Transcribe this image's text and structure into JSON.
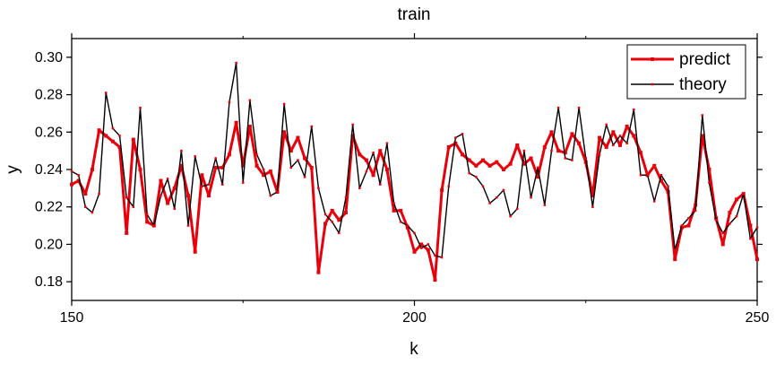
{
  "chart_data": {
    "type": "line",
    "title": "train",
    "xlabel": "k",
    "ylabel": "y",
    "xlim": [
      150,
      250
    ],
    "ylim": [
      0.17,
      0.31
    ],
    "xticks": [
      150,
      200,
      250
    ],
    "yticks": [
      0.18,
      0.2,
      0.22,
      0.24,
      0.26,
      0.28,
      0.3
    ],
    "ytick_labels": [
      "0.18",
      "0.20",
      "0.22",
      "0.24",
      "0.26",
      "0.28",
      "0.30"
    ],
    "grid": false,
    "legend_position": "top-right",
    "x": [
      150,
      151,
      152,
      153,
      154,
      155,
      156,
      157,
      158,
      159,
      160,
      161,
      162,
      163,
      164,
      165,
      166,
      167,
      168,
      169,
      170,
      171,
      172,
      173,
      174,
      175,
      176,
      177,
      178,
      179,
      180,
      181,
      182,
      183,
      184,
      185,
      186,
      187,
      188,
      189,
      190,
      191,
      192,
      193,
      194,
      195,
      196,
      197,
      198,
      199,
      200,
      201,
      202,
      203,
      204,
      205,
      206,
      207,
      208,
      209,
      210,
      211,
      212,
      213,
      214,
      215,
      216,
      217,
      218,
      219,
      220,
      221,
      222,
      223,
      224,
      225,
      226,
      227,
      228,
      229,
      230,
      231,
      232,
      233,
      234,
      235,
      236,
      237,
      238,
      239,
      240,
      241,
      242,
      243,
      244,
      245,
      246,
      247,
      248,
      249,
      250
    ],
    "series": [
      {
        "name": "predict",
        "color": "#e8000b",
        "values": [
          0.232,
          0.234,
          0.227,
          0.24,
          0.261,
          0.258,
          0.255,
          0.252,
          0.206,
          0.256,
          0.24,
          0.212,
          0.21,
          0.234,
          0.222,
          0.23,
          0.242,
          0.226,
          0.196,
          0.237,
          0.226,
          0.241,
          0.241,
          0.248,
          0.265,
          0.242,
          0.263,
          0.242,
          0.237,
          0.239,
          0.228,
          0.26,
          0.25,
          0.257,
          0.246,
          0.241,
          0.185,
          0.211,
          0.218,
          0.213,
          0.217,
          0.258,
          0.248,
          0.245,
          0.237,
          0.25,
          0.24,
          0.218,
          0.218,
          0.209,
          0.196,
          0.2,
          0.197,
          0.181,
          0.229,
          0.252,
          0.254,
          0.248,
          0.245,
          0.242,
          0.245,
          0.242,
          0.244,
          0.24,
          0.243,
          0.253,
          0.243,
          0.246,
          0.236,
          0.252,
          0.26,
          0.25,
          0.249,
          0.259,
          0.254,
          0.244,
          0.226,
          0.257,
          0.252,
          0.26,
          0.253,
          0.263,
          0.258,
          0.249,
          0.237,
          0.242,
          0.234,
          0.228,
          0.192,
          0.209,
          0.21,
          0.221,
          0.258,
          0.24,
          0.214,
          0.2,
          0.217,
          0.224,
          0.227,
          0.21,
          0.192
        ]
      },
      {
        "name": "theory",
        "color": "#000000",
        "values": [
          0.239,
          0.237,
          0.22,
          0.217,
          0.227,
          0.281,
          0.262,
          0.258,
          0.225,
          0.22,
          0.273,
          0.216,
          0.21,
          0.226,
          0.235,
          0.219,
          0.25,
          0.21,
          0.247,
          0.231,
          0.232,
          0.246,
          0.232,
          0.276,
          0.297,
          0.233,
          0.277,
          0.248,
          0.24,
          0.226,
          0.228,
          0.275,
          0.241,
          0.245,
          0.236,
          0.263,
          0.23,
          0.216,
          0.212,
          0.206,
          0.225,
          0.264,
          0.23,
          0.239,
          0.249,
          0.232,
          0.254,
          0.222,
          0.212,
          0.21,
          0.206,
          0.198,
          0.2,
          0.194,
          0.193,
          0.231,
          0.257,
          0.259,
          0.238,
          0.236,
          0.231,
          0.222,
          0.225,
          0.229,
          0.215,
          0.219,
          0.25,
          0.225,
          0.241,
          0.221,
          0.25,
          0.273,
          0.246,
          0.245,
          0.273,
          0.246,
          0.22,
          0.248,
          0.264,
          0.253,
          0.258,
          0.254,
          0.272,
          0.237,
          0.237,
          0.223,
          0.237,
          0.231,
          0.197,
          0.21,
          0.214,
          0.218,
          0.269,
          0.233,
          0.213,
          0.206,
          0.211,
          0.215,
          0.227,
          0.203,
          0.209
        ]
      }
    ]
  }
}
